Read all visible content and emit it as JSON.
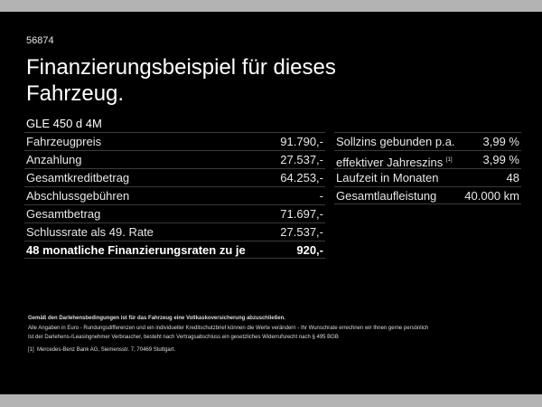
{
  "id": "56874",
  "title": "Finanzierungsbeispiel für dieses Fahrzeug.",
  "model": "GLE 450 d 4M",
  "left_rows": [
    {
      "label": "Fahrzeugpreis",
      "value": "91.790,-"
    },
    {
      "label": "Anzahlung",
      "value": "27.537,-"
    },
    {
      "label": "Gesamtkreditbetrag",
      "value": "64.253,-"
    },
    {
      "label": "Abschlussgebühren",
      "value": "-"
    },
    {
      "label": "Gesamtbetrag",
      "value": "71.697,-"
    },
    {
      "label": "Schlussrate als 49. Rate",
      "value": "27.537,-"
    },
    {
      "label": "48 monatliche Finanzierungsraten zu je",
      "value": "920,-"
    }
  ],
  "right_rows": [
    {
      "label": "Sollzins gebunden p.a.",
      "value": "3,99 %"
    },
    {
      "label": "effektiver Jahreszins",
      "sup": "[1]",
      "value": "3,99 %"
    },
    {
      "label": "Laufzeit in Monaten",
      "value": "48"
    },
    {
      "label": "Gesamtlaufleistung",
      "value": "40.000 km"
    }
  ],
  "notes": {
    "bold": "Gemäß den Darlehensbedingungen ist für das Fahrzeug eine Vollkaskoversicherung abzuschließen.",
    "line1": "Alle Angaben in Euro - Rundungsdifferenzen und ein individueller Kreditschutzbrief können die Werte verändern - Ihr Wunschrate errechnen wir Ihnen gerne persönlich",
    "line2": "Ist der Darlehens-/Leasingnehmer Verbraucher, besteht nach Vertragsabschluss ein gesetzliches Widerrufsrecht nach § 495 BGB",
    "fn_mark": "[1]",
    "fn": "Mercedes-Benz Bank AG, Siemensstr. 7, 70469 Stuttgart."
  }
}
